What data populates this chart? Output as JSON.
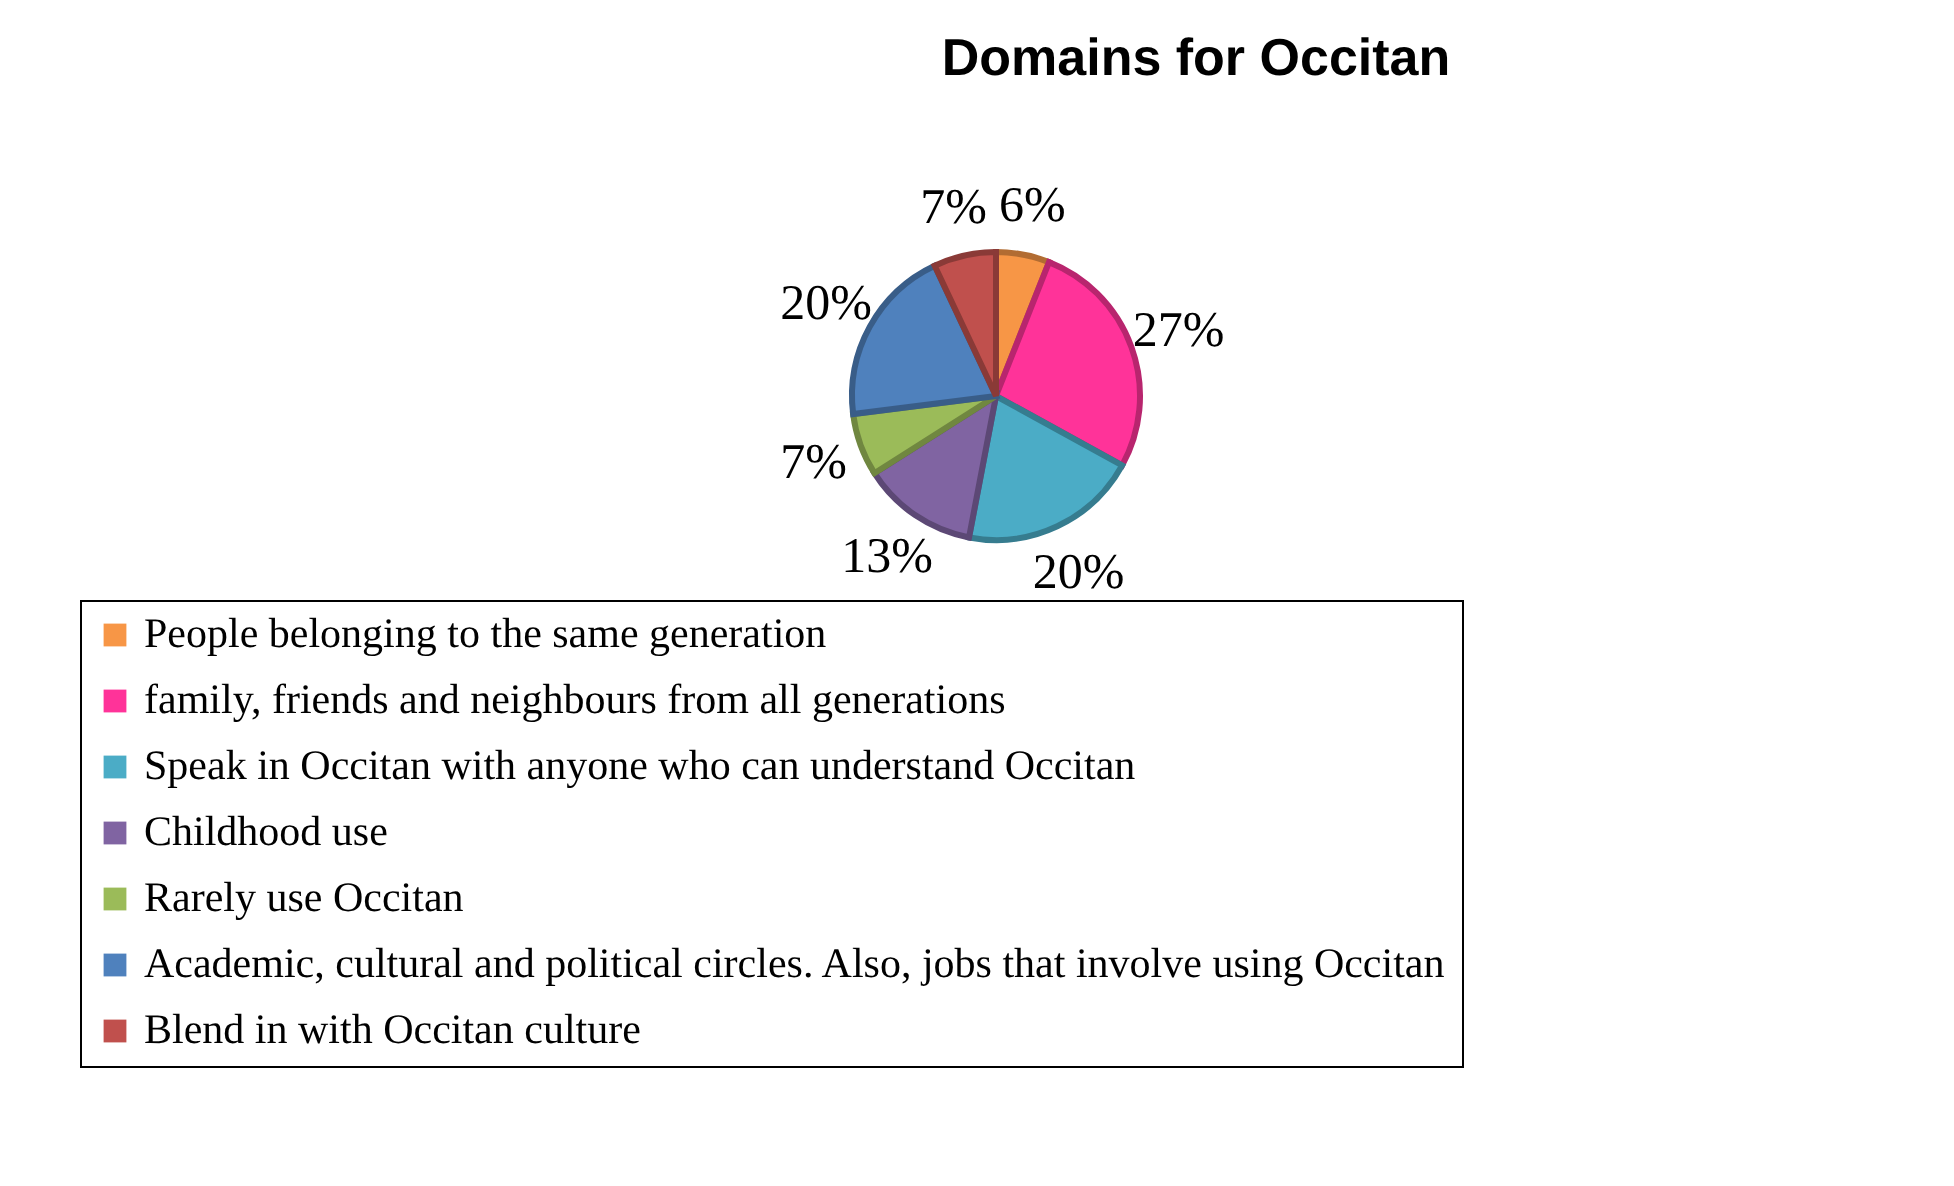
{
  "chart_data": {
    "type": "pie",
    "title": "Domains for Occitan",
    "categories": [
      "People belonging to the same generation",
      "family, friends and neighbours from all generations",
      "Speak in Occitan with anyone who can understand Occitan",
      "Childhood use",
      "Rarely use Occitan",
      "Academic, cultural and political circles. Also, jobs that involve using Occitan",
      "Blend in with Occitan culture"
    ],
    "values": [
      6,
      27,
      20,
      13,
      7,
      20,
      7
    ],
    "value_labels": [
      "6%",
      "27%",
      "20%",
      "13%",
      "7%",
      "20%",
      "7%"
    ],
    "colors": [
      "#f79646",
      "#ff3399",
      "#4bacc6",
      "#8064a2",
      "#9bbb59",
      "#4f81bd",
      "#c0504d"
    ],
    "legend": "bottom"
  }
}
